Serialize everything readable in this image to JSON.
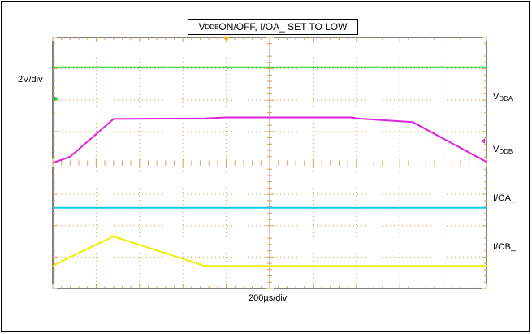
{
  "chart_data": {
    "type": "line",
    "title_parts": [
      "V",
      "DDB",
      " ON/OFF, I/OA_ SET TO LOW"
    ],
    "ylabel": "2V/div",
    "xlabel": "200µs/div",
    "grid": true,
    "x": [
      0,
      0.4,
      1.4,
      3.5,
      4,
      4.5,
      4.6,
      6.9,
      7,
      8.3,
      10
    ],
    "x_divisions": 10,
    "y_divisions": 8,
    "series": [
      {
        "name_parts": [
          "V",
          "DDA"
        ],
        "color": "#22cc22",
        "y": [
          7.05,
          7.05,
          7.05,
          7.05,
          7.05,
          7.05,
          7.05,
          7.05,
          7.05,
          7.05,
          7.05
        ]
      },
      {
        "name_parts": [
          "V",
          "DDB"
        ],
        "color": "#dd22dd",
        "y": [
          4.0,
          4.2,
          5.4,
          5.42,
          5.45,
          5.45,
          5.45,
          5.45,
          5.42,
          5.3,
          4.03
        ]
      },
      {
        "name_parts": [
          "I/OA_"
        ],
        "color": "#11ccee",
        "y": [
          2.57,
          2.57,
          2.57,
          2.57,
          2.57,
          2.57,
          2.57,
          2.57,
          2.57,
          2.57,
          2.57
        ]
      },
      {
        "name_parts": [
          "I/OB_"
        ],
        "color": "#eeee00",
        "y": [
          0.72,
          1.0,
          1.66,
          0.72,
          0.72,
          0.72,
          0.72,
          0.72,
          0.72,
          0.72,
          0.72
        ]
      }
    ],
    "channel_markers": [
      {
        "side": "left",
        "y": 6.05,
        "color": "#22cc22",
        "icon": "triangle-right"
      },
      {
        "side": "right",
        "y": 4.7,
        "color": "#dd22dd",
        "icon": "triangle-left"
      },
      {
        "side": "top",
        "x": 4.0,
        "color": "#ffaa00",
        "icon": "triangle-down"
      }
    ]
  }
}
